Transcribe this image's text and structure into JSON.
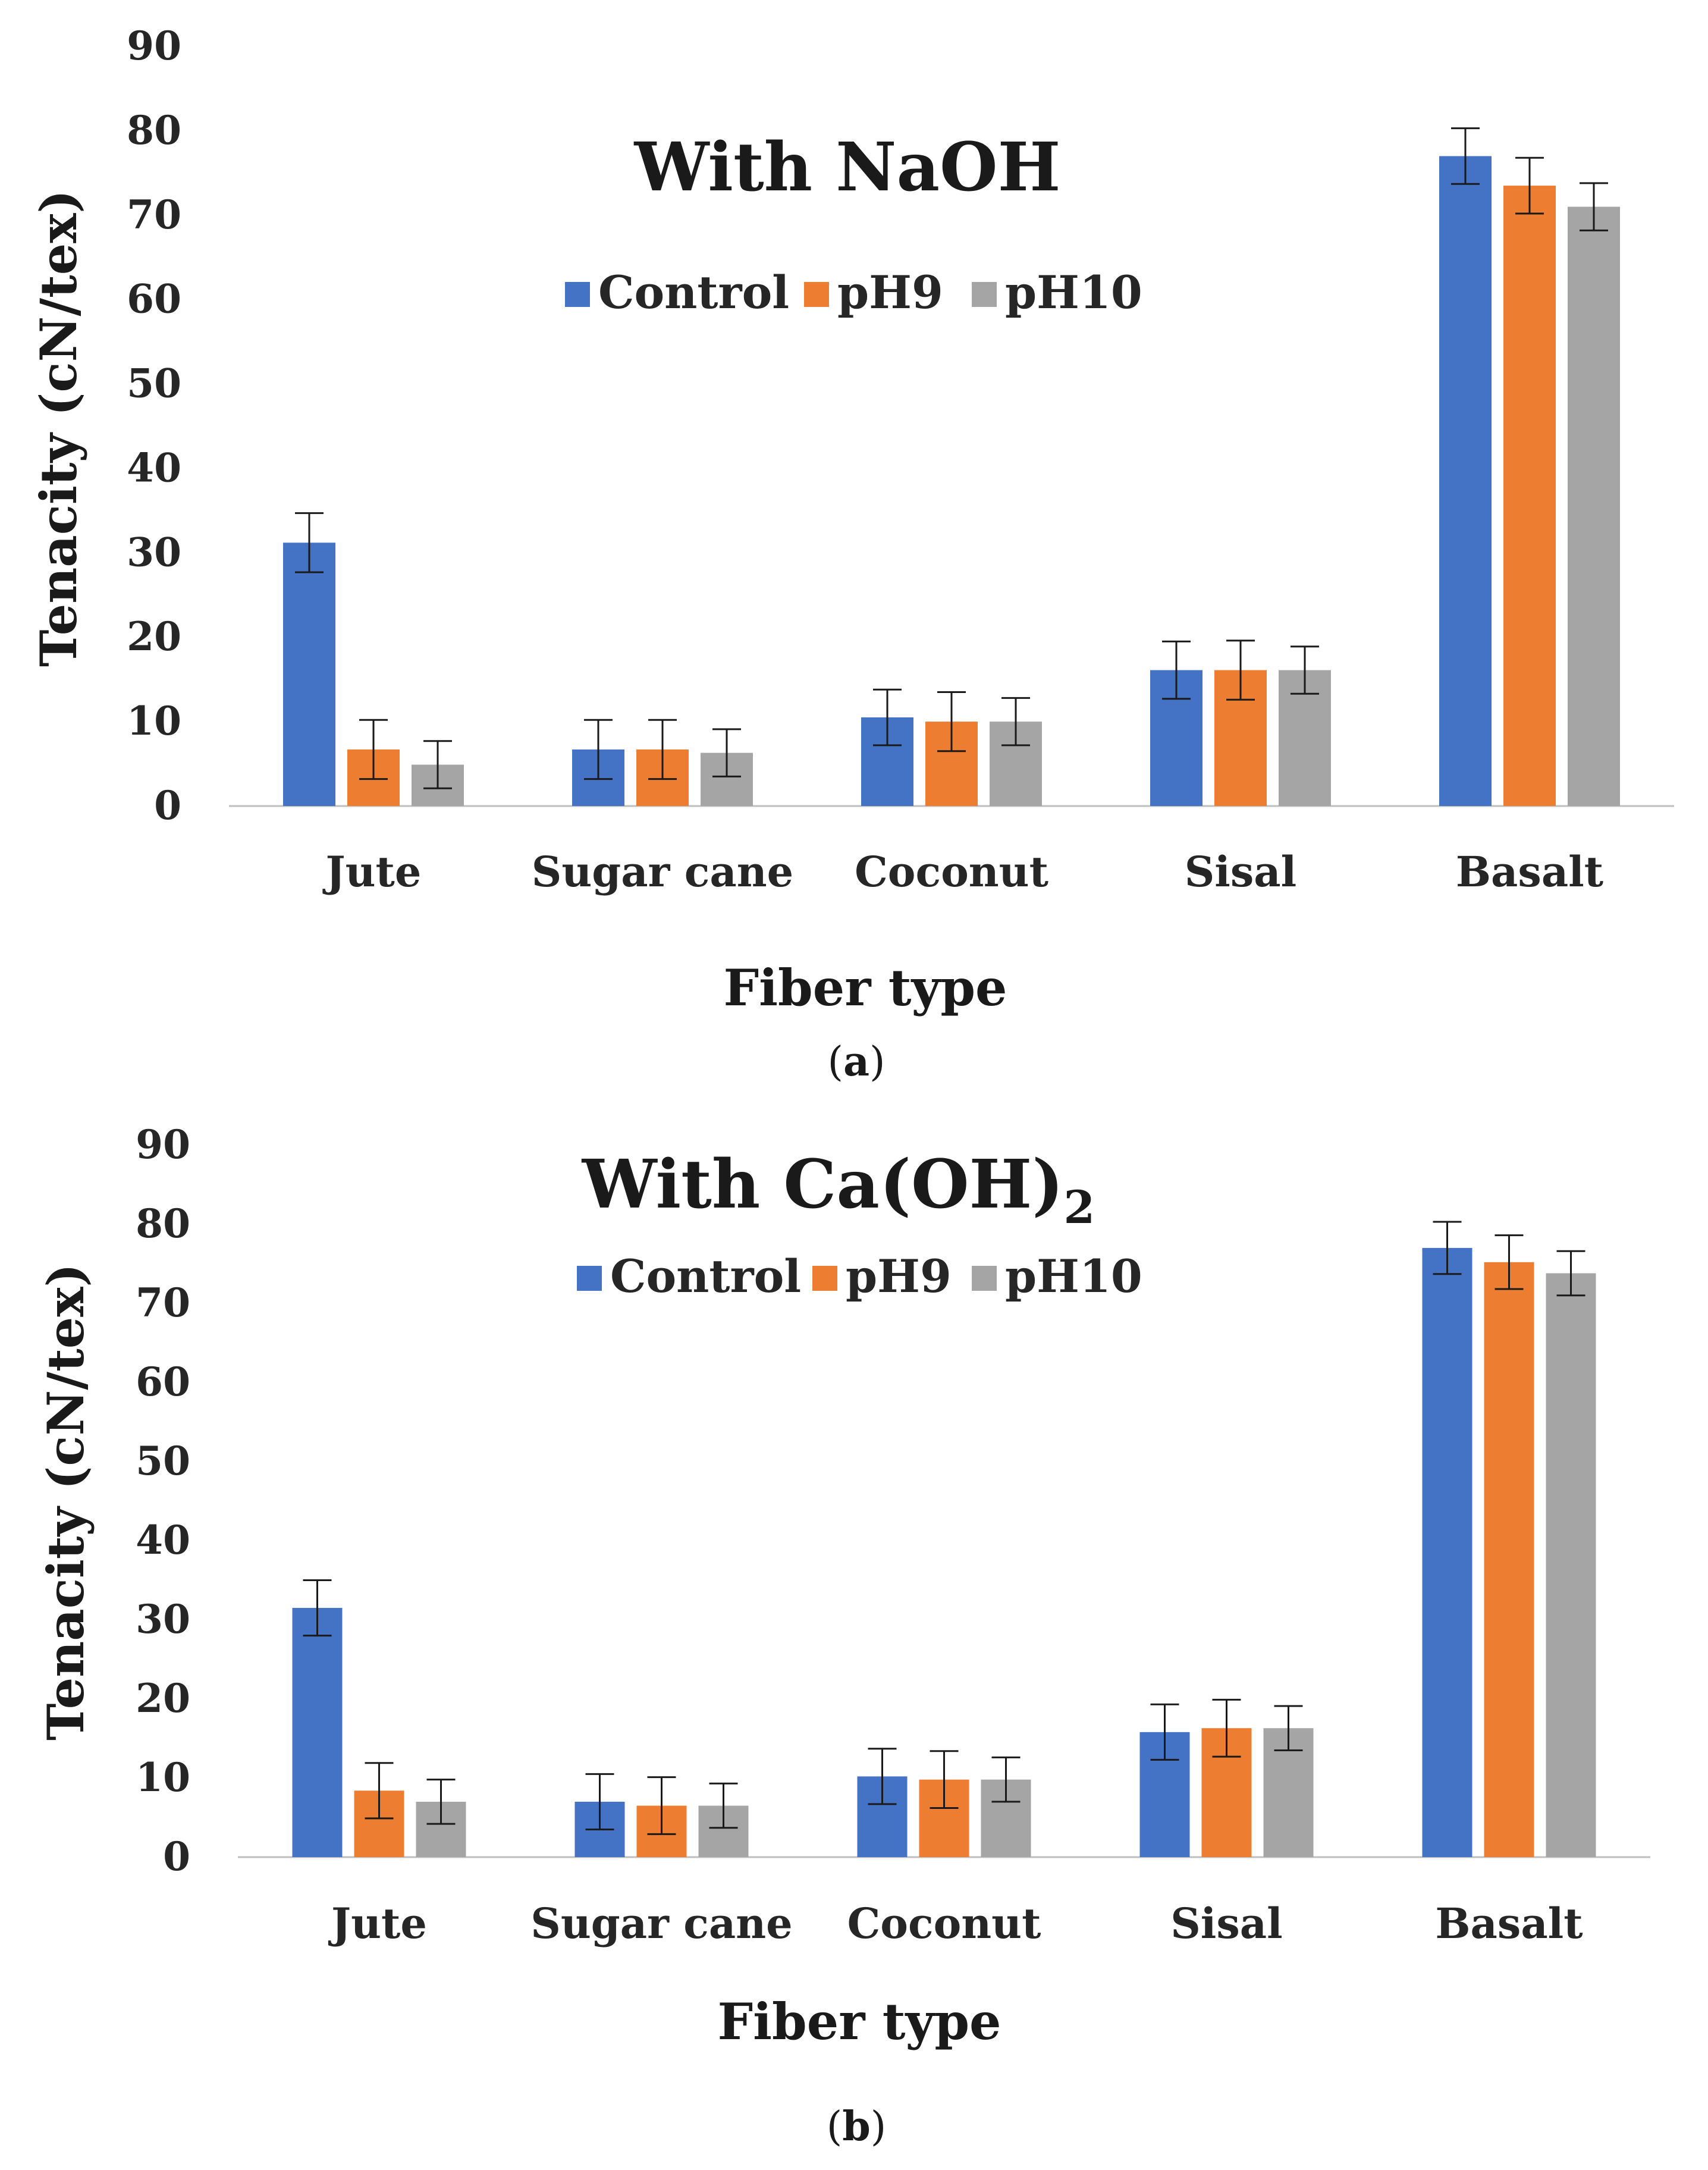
{
  "chart_data": [
    {
      "type": "bar",
      "title": "With NaOH",
      "title_subscript": "",
      "xlabel": "Fiber type",
      "ylabel": "Tenacity (cN/tex)",
      "ylim": [
        0,
        90
      ],
      "yticks": [
        0,
        10,
        20,
        30,
        40,
        50,
        60,
        70,
        80,
        90
      ],
      "categories": [
        "Jute",
        "Sugar cane",
        "Coconut",
        "Sisal",
        "Basalt"
      ],
      "legend_position": "top-center",
      "series": [
        {
          "name": "Control",
          "color": "#4472C4",
          "values": [
            31.2,
            6.7,
            10.5,
            16.1,
            77.0
          ],
          "errors": [
            3.5,
            3.5,
            3.3,
            3.4,
            3.3
          ]
        },
        {
          "name": "pH9",
          "color": "#ED7D31",
          "values": [
            6.7,
            6.7,
            10.0,
            16.1,
            73.5
          ],
          "errors": [
            3.5,
            3.5,
            3.5,
            3.5,
            3.3
          ]
        },
        {
          "name": "pH10",
          "color": "#A5A5A5",
          "values": [
            4.9,
            6.3,
            10.0,
            16.1,
            71.0
          ],
          "errors": [
            2.8,
            2.8,
            2.8,
            2.8,
            2.8
          ]
        }
      ],
      "panel_label": "a"
    },
    {
      "type": "bar",
      "title": "With Ca(OH)",
      "title_subscript": "2",
      "xlabel": "Fiber type",
      "ylabel": "Tenacity (cN/tex)",
      "ylim": [
        0,
        90
      ],
      "yticks": [
        0,
        10,
        20,
        30,
        40,
        50,
        60,
        70,
        80,
        90
      ],
      "categories": [
        "Jute",
        "Sugar cane",
        "Coconut",
        "Sisal",
        "Basalt"
      ],
      "legend_position": "top-center",
      "series": [
        {
          "name": "Control",
          "color": "#4472C4",
          "values": [
            31.5,
            7.0,
            10.2,
            15.8,
            77.0
          ],
          "errors": [
            3.5,
            3.5,
            3.5,
            3.5,
            3.3
          ]
        },
        {
          "name": "pH9",
          "color": "#ED7D31",
          "values": [
            8.4,
            6.5,
            9.8,
            16.3,
            75.2
          ],
          "errors": [
            3.5,
            3.6,
            3.6,
            3.6,
            3.4
          ]
        },
        {
          "name": "pH10",
          "color": "#A5A5A5",
          "values": [
            7.0,
            6.5,
            9.8,
            16.3,
            73.8
          ],
          "errors": [
            2.8,
            2.8,
            2.8,
            2.8,
            2.8
          ]
        }
      ],
      "panel_label": "b"
    }
  ]
}
